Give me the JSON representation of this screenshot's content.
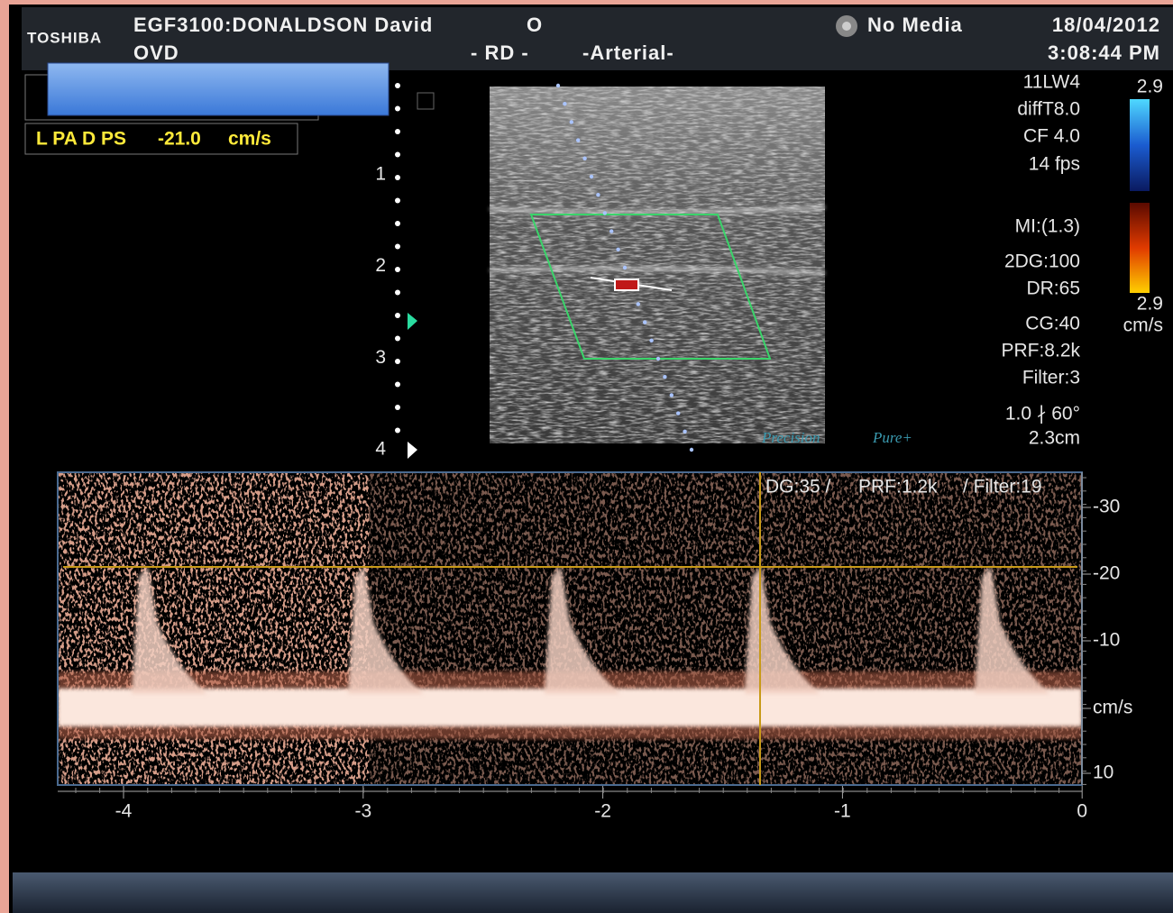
{
  "header": {
    "logo": "TOSHIBA",
    "patient": "EGF3100:DONALDSON David",
    "patient_flag": "O",
    "preset": "OVD",
    "side": "- RD -",
    "mode": "-Arterial-",
    "media": "No Media",
    "date": "18/04/2012",
    "time": "3:08:44 PM"
  },
  "measurement": {
    "name": "L PA D PS",
    "value": "-21.0",
    "unit": "cm/s"
  },
  "depth_scale": [
    "1",
    "2",
    "3",
    "4"
  ],
  "parameters": [
    "11LW4",
    "diffT8.0",
    "CF 4.0",
    "14 fps",
    "MI:(1.3)",
    "2DG:100",
    "DR:65",
    "CG:40",
    "PRF:8.2k",
    "Filter:3",
    "1.0 ∤ 60°",
    "2.3cm"
  ],
  "color_bar": {
    "top": "2.9",
    "bottom": "2.9",
    "unit": "cm/s"
  },
  "brand": {
    "left": "Precision",
    "right": "Pure+"
  },
  "doppler": {
    "settings": [
      "DG:35 /",
      "PRF:1.2k",
      "/ Filter:19"
    ],
    "velocity_ticks": [
      "-30",
      "-20",
      "-10",
      "cm/s",
      "10"
    ],
    "time_ticks": [
      "-4",
      "-3",
      "-2",
      "-1",
      "0"
    ]
  }
}
